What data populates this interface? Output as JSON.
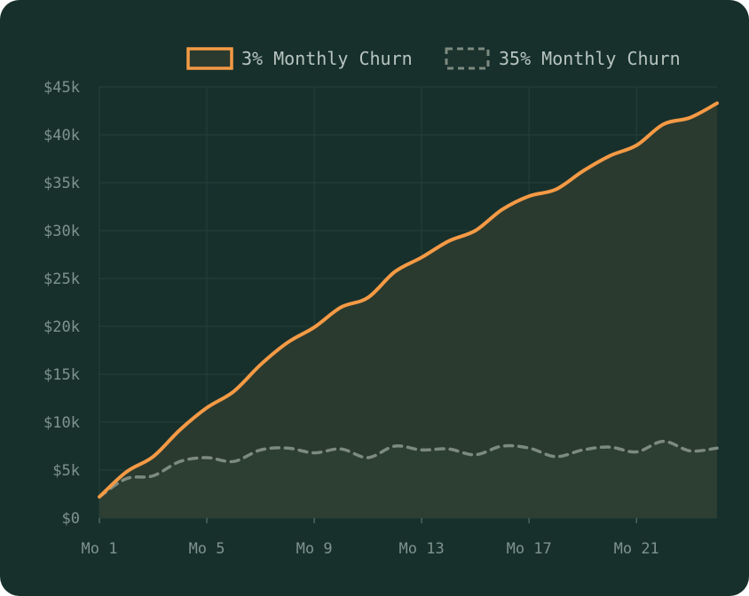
{
  "chart_data": {
    "type": "line",
    "title": "",
    "xlabel": "",
    "ylabel": "",
    "x": [
      1,
      2,
      3,
      4,
      5,
      6,
      7,
      8,
      9,
      10,
      11,
      12,
      13,
      14,
      15,
      16,
      17,
      18,
      19,
      20,
      21,
      22,
      23,
      24
    ],
    "x_ticks": [
      {
        "value": 1,
        "label": "Mo 1"
      },
      {
        "value": 5,
        "label": "Mo 5"
      },
      {
        "value": 9,
        "label": "Mo 9"
      },
      {
        "value": 13,
        "label": "Mo 13"
      },
      {
        "value": 17,
        "label": "Mo 17"
      },
      {
        "value": 21,
        "label": "Mo 21"
      }
    ],
    "y_ticks": [
      {
        "value": 0,
        "label": "$0"
      },
      {
        "value": 5000,
        "label": "$5k"
      },
      {
        "value": 10000,
        "label": "$10k"
      },
      {
        "value": 15000,
        "label": "$15k"
      },
      {
        "value": 20000,
        "label": "$20k"
      },
      {
        "value": 25000,
        "label": "$25k"
      },
      {
        "value": 30000,
        "label": "$30k"
      },
      {
        "value": 35000,
        "label": "$35k"
      },
      {
        "value": 40000,
        "label": "$40k"
      },
      {
        "value": 45000,
        "label": "$45k"
      }
    ],
    "xlim": [
      1,
      24
    ],
    "ylim": [
      0,
      45000
    ],
    "grid": true,
    "legend_position": "top-right",
    "series": [
      {
        "name": "3% Monthly Churn",
        "color": "#f59a45",
        "style": "solid",
        "fill": true,
        "values": [
          2200,
          4800,
          6400,
          9200,
          11500,
          13200,
          16000,
          18300,
          19900,
          22000,
          23000,
          25700,
          27200,
          28900,
          30000,
          32200,
          33600,
          34300,
          36200,
          37800,
          38900,
          41100,
          41800,
          43300
        ]
      },
      {
        "name": "35% Monthly Churn",
        "color": "#7c8a80",
        "style": "dashed",
        "fill": true,
        "values": [
          2200,
          4100,
          4400,
          5900,
          6300,
          5900,
          7100,
          7300,
          6800,
          7200,
          6300,
          7500,
          7100,
          7200,
          6600,
          7500,
          7300,
          6400,
          7100,
          7400,
          6900,
          8000,
          7000,
          7300
        ]
      }
    ]
  },
  "legend": {
    "items": [
      {
        "label": "3% Monthly Churn"
      },
      {
        "label": "35% Monthly Churn"
      }
    ]
  }
}
